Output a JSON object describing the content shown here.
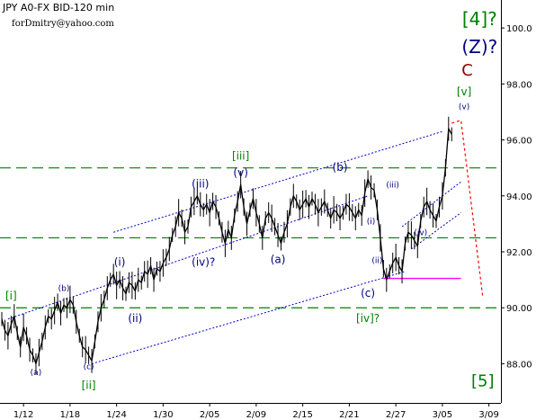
{
  "header": {
    "title": "JPY A0-FX BID-120 min",
    "author": "forDmitry@yahoo.com"
  },
  "chart_data": {
    "type": "line",
    "ylim": [
      86.6,
      101.0
    ],
    "xlim": [
      0,
      145
    ],
    "y_ticks": [
      "88.00",
      "90.00",
      "92.00",
      "94.00",
      "96.00",
      "98.00",
      "100.0"
    ],
    "y_tick_values": [
      88,
      90,
      92,
      94,
      96,
      98,
      100
    ],
    "x_ticks": [
      {
        "label": "1/12",
        "x": 7
      },
      {
        "label": "1/18",
        "x": 22
      },
      {
        "label": "1/24",
        "x": 37
      },
      {
        "label": "1/30",
        "x": 52
      },
      {
        "label": "2/05",
        "x": 67
      },
      {
        "label": "2/09",
        "x": 82
      },
      {
        "label": "2/15",
        "x": 97
      },
      {
        "label": "2/21",
        "x": 112
      },
      {
        "label": "2/27",
        "x": 127
      },
      {
        "label": "3/05",
        "x": 142
      },
      {
        "label": "3/09",
        "x": 157
      }
    ],
    "series": [
      {
        "x": [
          0,
          1,
          2,
          3,
          4,
          5,
          6,
          7,
          8,
          9,
          10,
          11,
          12,
          13,
          14,
          15,
          16,
          17,
          18,
          19,
          20,
          21,
          22,
          23,
          24,
          25,
          26,
          27,
          28,
          29,
          30,
          31,
          32,
          33,
          34,
          35,
          36,
          37,
          38,
          39,
          40,
          41,
          42,
          43,
          44,
          45,
          46,
          47,
          48,
          49,
          50,
          51,
          52,
          53,
          54,
          55,
          56,
          57,
          58,
          59,
          60,
          61,
          62,
          63,
          64,
          65,
          66,
          67,
          68,
          69,
          70,
          71,
          72,
          73,
          74,
          75,
          76,
          77,
          78,
          79,
          80,
          81,
          82,
          83,
          84,
          85,
          86,
          87,
          88,
          89,
          90,
          91,
          92,
          93,
          94,
          95,
          96,
          97,
          98,
          99,
          100,
          101,
          102,
          103,
          104,
          105,
          106,
          107,
          108,
          109,
          110,
          111,
          112,
          113,
          114,
          115,
          116,
          117,
          118,
          119,
          120,
          121,
          122,
          123,
          124,
          125,
          126,
          127,
          128,
          129,
          130,
          131,
          132,
          133,
          134,
          135,
          136,
          137,
          138,
          139,
          140,
          141,
          142,
          143,
          144,
          145
        ],
        "y": [
          89.6,
          89.2,
          89.0,
          89.4,
          89.7,
          89.1,
          88.6,
          89.3,
          89.0,
          88.5,
          88.3,
          88.0,
          88.4,
          88.8,
          89.3,
          89.7,
          89.6,
          89.9,
          90.2,
          89.8,
          90.1,
          90.0,
          90.3,
          90.1,
          89.5,
          89.0,
          88.6,
          88.5,
          88.3,
          88.1,
          88.8,
          89.5,
          90.0,
          90.3,
          90.7,
          91.0,
          91.2,
          90.8,
          91.0,
          90.7,
          90.5,
          90.9,
          90.8,
          90.6,
          91.0,
          90.9,
          91.3,
          91.2,
          91.5,
          91.0,
          91.4,
          91.3,
          91.6,
          91.8,
          92.1,
          92.6,
          92.9,
          93.4,
          93.2,
          92.7,
          92.9,
          93.6,
          93.8,
          94.0,
          93.7,
          93.5,
          93.7,
          93.4,
          93.8,
          93.6,
          93.2,
          92.7,
          92.3,
          92.8,
          92.5,
          93.3,
          93.8,
          94.4,
          93.6,
          93.0,
          93.5,
          93.9,
          93.4,
          93.0,
          92.5,
          93.2,
          93.4,
          93.2,
          92.9,
          92.6,
          92.3,
          92.7,
          93.0,
          93.6,
          94.0,
          93.8,
          93.5,
          93.7,
          93.9,
          93.6,
          93.9,
          93.7,
          93.4,
          93.6,
          93.8,
          93.5,
          93.2,
          93.5,
          93.4,
          93.2,
          93.4,
          93.7,
          93.6,
          93.4,
          93.2,
          93.5,
          93.3,
          94.1,
          94.6,
          94.3,
          94.2,
          93.5,
          92.5,
          91.4,
          91.0,
          91.3,
          91.6,
          91.8,
          91.5,
          91.3,
          92.3,
          92.7,
          92.6,
          92.4,
          92.2,
          93.1,
          93.6,
          93.8,
          93.5,
          93.3,
          93.1,
          93.6,
          94.0,
          95.0,
          96.4,
          96.2
        ]
      }
    ],
    "support_lines": [
      {
        "y": 95.0,
        "color": "#008000"
      },
      {
        "y": 92.5,
        "color": "#008000"
      },
      {
        "y": 90.0,
        "color": "#008000"
      }
    ],
    "target_line": {
      "x1": 123,
      "x2": 148,
      "y": 91.05,
      "color": "#ff00ff"
    },
    "channels": [
      {
        "x1": 36,
        "y1": 92.7,
        "x2": 142,
        "y2": 96.3
      },
      {
        "x1": 2,
        "y1": 89.6,
        "x2": 118,
        "y2": 94.0
      },
      {
        "x1": 29,
        "y1": 88.0,
        "x2": 130,
        "y2": 91.3
      }
    ],
    "mini_channels": [
      {
        "x1": 132,
        "y1": 92.1,
        "x2": 148,
        "y2": 93.4
      },
      {
        "x1": 129,
        "y1": 92.9,
        "x2": 148,
        "y2": 94.5
      }
    ],
    "projection": {
      "x": [
        145,
        148,
        155
      ],
      "y": [
        96.6,
        96.7,
        90.4
      ],
      "color": "#ff0000"
    },
    "wave_labels": [
      {
        "text": "[4]?",
        "x": 154,
        "y": 100.1,
        "color": "#008000",
        "size": 20
      },
      {
        "text": "(Z)?",
        "x": 154,
        "y": 99.1,
        "color": "#000080",
        "size": 20
      },
      {
        "text": "C",
        "x": 150,
        "y": 98.3,
        "color": "#8b0000",
        "size": 18
      },
      {
        "text": "[v]",
        "x": 149,
        "y": 97.6,
        "color": "#008000",
        "size": 12
      },
      {
        "text": "(v)",
        "x": 149,
        "y": 97.1,
        "color": "#000080",
        "size": 9
      },
      {
        "text": "[iii]",
        "x": 77,
        "y": 95.3,
        "color": "#008000",
        "size": 12
      },
      {
        "text": "(v)",
        "x": 77,
        "y": 94.7,
        "color": "#000080",
        "size": 12
      },
      {
        "text": "(iii)",
        "x": 64,
        "y": 94.3,
        "color": "#000080",
        "size": 12
      },
      {
        "text": "(b)",
        "x": 109,
        "y": 94.9,
        "color": "#000080",
        "size": 12
      },
      {
        "text": "(iii)",
        "x": 126,
        "y": 94.3,
        "color": "#000080",
        "size": 9
      },
      {
        "text": "(i)",
        "x": 119,
        "y": 93.0,
        "color": "#000080",
        "size": 9
      },
      {
        "text": "(iv)",
        "x": 135,
        "y": 92.6,
        "color": "#000080",
        "size": 9
      },
      {
        "text": "(iv)?",
        "x": 65,
        "y": 91.5,
        "color": "#000080",
        "size": 12
      },
      {
        "text": "(a)",
        "x": 89,
        "y": 91.6,
        "color": "#000080",
        "size": 12
      },
      {
        "text": "(ii)",
        "x": 121,
        "y": 91.6,
        "color": "#000080",
        "size": 9
      },
      {
        "text": "(i)",
        "x": 38,
        "y": 91.5,
        "color": "#000080",
        "size": 12
      },
      {
        "text": "(ii)",
        "x": 43,
        "y": 89.5,
        "color": "#000080",
        "size": 12
      },
      {
        "text": "(c)",
        "x": 118,
        "y": 90.4,
        "color": "#000080",
        "size": 12
      },
      {
        "text": "[iv]?",
        "x": 118,
        "y": 89.5,
        "color": "#008000",
        "size": 12
      },
      {
        "text": "[i]",
        "x": 3,
        "y": 90.3,
        "color": "#008000",
        "size": 12
      },
      {
        "text": "(b)",
        "x": 20,
        "y": 90.6,
        "color": "#000080",
        "size": 9
      },
      {
        "text": "(a)",
        "x": 11,
        "y": 87.6,
        "color": "#000080",
        "size": 9
      },
      {
        "text": "(c)",
        "x": 28,
        "y": 87.8,
        "color": "#000080",
        "size": 9
      },
      {
        "text": "[ii]",
        "x": 28,
        "y": 87.1,
        "color": "#008000",
        "size": 12
      },
      {
        "text": "[5]",
        "x": 155,
        "y": 87.2,
        "color": "#008000",
        "size": 18
      }
    ]
  }
}
